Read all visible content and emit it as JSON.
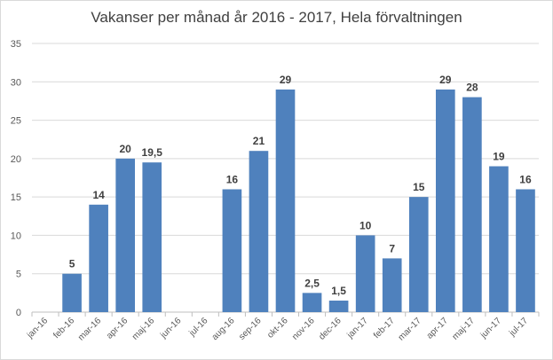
{
  "chart_data": {
    "type": "bar",
    "title": "Vakanser per månad år 2016 - 2017, Hela förvaltningen",
    "xlabel": "",
    "ylabel": "",
    "ylim": [
      0,
      35
    ],
    "yticks": [
      0,
      5,
      10,
      15,
      20,
      25,
      30,
      35
    ],
    "grid": true,
    "legend": "none",
    "bar_color": "#4f81bd",
    "categories": [
      "jan-16",
      "feb-16",
      "mar-16",
      "apr-16",
      "maj-16",
      "jun-16",
      "jul-16",
      "aug-16",
      "sep-16",
      "okt-16",
      "nov-16",
      "dec-16",
      "jan-17",
      "feb-17",
      "mar-17",
      "apr-17",
      "maj-17",
      "jun-17",
      "jul-17"
    ],
    "values": [
      null,
      5,
      14,
      20,
      19.5,
      null,
      null,
      16,
      21,
      29,
      2.5,
      1.5,
      10,
      7,
      15,
      29,
      28,
      19,
      16
    ],
    "data_labels": [
      "",
      "5",
      "14",
      "20",
      "19,5",
      "",
      "",
      "16",
      "21",
      "29",
      "2,5",
      "1,5",
      "10",
      "7",
      "15",
      "29",
      "28",
      "19",
      "16"
    ]
  }
}
